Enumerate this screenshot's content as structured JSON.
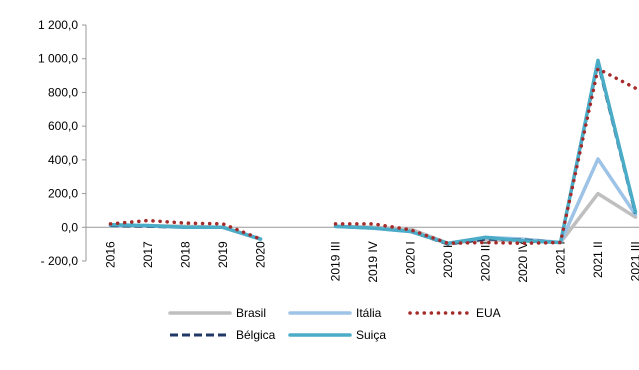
{
  "chart_data": {
    "type": "line",
    "categories": [
      "2016",
      "2017",
      "2018",
      "2019",
      "2020",
      "",
      "2019 III",
      "2019 IV",
      "2020 I",
      "2020 II",
      "2020 III",
      "2020 IV",
      "2021 I",
      "2021 II",
      "2021 III"
    ],
    "y_ticks": [
      "- 200,0",
      "0,0",
      "200,0",
      "400,0",
      "600,0",
      "800,0",
      "1 000,0",
      "1 200,0"
    ],
    "ylim": [
      -200,
      1200
    ],
    "grid": false,
    "legend_position": "bottom",
    "series": [
      {
        "name": "Brasil",
        "color": "#bfbfbf",
        "style": "solid",
        "values": [
          10,
          10,
          5,
          0,
          -70,
          null,
          5,
          0,
          -10,
          -95,
          -75,
          -80,
          -90,
          200,
          60
        ]
      },
      {
        "name": "Itália",
        "color": "#9dc3e6",
        "style": "solid",
        "values": [
          10,
          10,
          0,
          0,
          -70,
          null,
          5,
          -5,
          -25,
          -95,
          -60,
          -70,
          -90,
          405,
          75
        ]
      },
      {
        "name": "EUA",
        "color": "#a52a2a",
        "style": "dotted",
        "values": [
          20,
          40,
          25,
          20,
          -70,
          null,
          20,
          20,
          -15,
          -95,
          -90,
          -95,
          -90,
          940,
          825
        ]
      },
      {
        "name": "Bélgica",
        "color": "#1f3864",
        "style": "dashed",
        "values": [
          10,
          5,
          0,
          0,
          -70,
          null,
          5,
          -5,
          -25,
          -100,
          -70,
          -75,
          -90,
          975,
          80
        ]
      },
      {
        "name": "Suiça",
        "color": "#4aacc6",
        "style": "solid",
        "values": [
          15,
          10,
          0,
          0,
          -70,
          null,
          5,
          -5,
          -25,
          -95,
          -60,
          -80,
          -90,
          990,
          90
        ]
      }
    ]
  }
}
